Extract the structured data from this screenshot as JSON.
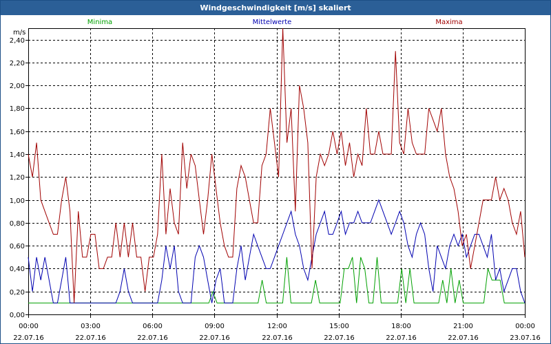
{
  "window": {
    "title": "Windgeschwindigkeit [m/s] skaliert"
  },
  "chart_data": {
    "type": "line",
    "title": "Windgeschwindigkeit [m/s] skaliert",
    "ylabel": "m/s",
    "ylim": [
      0,
      2.5
    ],
    "xlim": [
      0,
      24
    ],
    "grid": true,
    "legend_position": "top",
    "y_ticks": [
      "0,00",
      "0,20",
      "0,40",
      "0,60",
      "0,80",
      "1,00",
      "1,20",
      "1,40",
      "1,60",
      "1,80",
      "2,00",
      "2,20",
      "2,40"
    ],
    "x_ticks": [
      {
        "time": "00:00",
        "date": "22.07.16"
      },
      {
        "time": "03:00",
        "date": "22.07.16"
      },
      {
        "time": "06:00",
        "date": "22.07.16"
      },
      {
        "time": "09:00",
        "date": "22.07.16"
      },
      {
        "time": "12:00",
        "date": "22.07.16"
      },
      {
        "time": "15:00",
        "date": "22.07.16"
      },
      {
        "time": "18:00",
        "date": "22.07.16"
      },
      {
        "time": "21:00",
        "date": "22.07.16"
      },
      {
        "time": "00:00",
        "date": "23.07.16"
      }
    ],
    "series": [
      {
        "name": "Minima",
        "color": "#00a000",
        "values": [
          0.1,
          0.1,
          0.1,
          0.1,
          0.1,
          0.1,
          0.1,
          0.1,
          0.1,
          0.1,
          0.1,
          0.1,
          0.1,
          0.1,
          0.1,
          0.1,
          0.1,
          0.1,
          0.1,
          0.1,
          0.1,
          0.1,
          0.1,
          0.1,
          0.1,
          0.1,
          0.1,
          0.1,
          0.1,
          0.1,
          0.1,
          0.1,
          0.1,
          0.1,
          0.1,
          0.1,
          0.1,
          0.1,
          0.1,
          0.1,
          0.1,
          0.1,
          0.1,
          0.1,
          0.1,
          0.2,
          0.1,
          0.1,
          0.1,
          0.1,
          0.1,
          0.1,
          0.1,
          0.1,
          0.1,
          0.1,
          0.1,
          0.3,
          0.1,
          0.1,
          0.1,
          0.1,
          0.1,
          0.5,
          0.1,
          0.1,
          0.1,
          0.1,
          0.1,
          0.1,
          0.3,
          0.1,
          0.1,
          0.1,
          0.1,
          0.1,
          0.1,
          0.4,
          0.4,
          0.5,
          0.1,
          0.5,
          0.4,
          0.1,
          0.1,
          0.5,
          0.1,
          0.1,
          0.1,
          0.1,
          0.1,
          0.4,
          0.1,
          0.4,
          0.1,
          0.1,
          0.1,
          0.1,
          0.1,
          0.1,
          0.1,
          0.3,
          0.1,
          0.4,
          0.1,
          0.3,
          0.1,
          0.1,
          0.1,
          0.1,
          0.1,
          0.1,
          0.4,
          0.3,
          0.3,
          0.3,
          0.1,
          0.1,
          0.1,
          0.1,
          0.1,
          0.1
        ]
      },
      {
        "name": "Mittelwerte",
        "color": "#0000b0",
        "values": [
          0.5,
          0.2,
          0.5,
          0.3,
          0.5,
          0.3,
          0.1,
          0.1,
          0.3,
          0.5,
          0.1,
          0.1,
          0.1,
          0.1,
          0.1,
          0.1,
          0.1,
          0.1,
          0.1,
          0.1,
          0.1,
          0.1,
          0.2,
          0.4,
          0.2,
          0.1,
          0.1,
          0.1,
          0.1,
          0.1,
          0.1,
          0.1,
          0.3,
          0.6,
          0.4,
          0.6,
          0.2,
          0.1,
          0.1,
          0.1,
          0.5,
          0.6,
          0.5,
          0.3,
          0.1,
          0.3,
          0.4,
          0.1,
          0.1,
          0.1,
          0.4,
          0.6,
          0.3,
          0.5,
          0.7,
          0.6,
          0.5,
          0.4,
          0.4,
          0.5,
          0.6,
          0.7,
          0.8,
          0.9,
          0.7,
          0.6,
          0.4,
          0.3,
          0.5,
          0.7,
          0.8,
          0.9,
          0.7,
          0.7,
          0.8,
          0.9,
          0.7,
          0.8,
          0.8,
          0.9,
          0.8,
          0.8,
          0.8,
          0.9,
          1.0,
          0.9,
          0.8,
          0.7,
          0.8,
          0.9,
          0.8,
          0.6,
          0.5,
          0.7,
          0.8,
          0.7,
          0.4,
          0.2,
          0.6,
          0.5,
          0.4,
          0.6,
          0.7,
          0.6,
          0.7,
          0.5,
          0.6,
          0.7,
          0.7,
          0.6,
          0.5,
          0.7,
          0.3,
          0.4,
          0.2,
          0.3,
          0.4,
          0.4,
          0.2,
          0.1
        ]
      },
      {
        "name": "Maxima",
        "color": "#a00000",
        "values": [
          1.4,
          1.2,
          1.5,
          1.0,
          0.9,
          0.8,
          0.7,
          0.7,
          1.0,
          1.2,
          0.9,
          0.1,
          0.9,
          0.5,
          0.5,
          0.7,
          0.7,
          0.4,
          0.4,
          0.5,
          0.5,
          0.8,
          0.5,
          0.8,
          0.5,
          0.8,
          0.5,
          0.5,
          0.2,
          0.5,
          0.5,
          0.7,
          1.4,
          0.7,
          1.1,
          0.8,
          0.7,
          1.5,
          1.1,
          1.4,
          1.3,
          1.0,
          0.7,
          1.0,
          1.4,
          1.1,
          0.8,
          0.6,
          0.5,
          0.5,
          1.1,
          1.3,
          1.2,
          1.0,
          0.8,
          0.8,
          1.3,
          1.4,
          1.8,
          1.5,
          1.2,
          2.5,
          1.5,
          1.8,
          0.9,
          2.0,
          1.8,
          1.5,
          0.4,
          1.2,
          1.4,
          1.3,
          1.4,
          1.6,
          1.4,
          1.6,
          1.3,
          1.5,
          1.2,
          1.4,
          1.3,
          1.8,
          1.4,
          1.4,
          1.6,
          1.4,
          1.4,
          1.4,
          2.3,
          1.5,
          1.4,
          1.8,
          1.5,
          1.4,
          1.4,
          1.4,
          1.8,
          1.7,
          1.6,
          1.8,
          1.4,
          1.2,
          1.1,
          0.9,
          0.6,
          0.7,
          0.4,
          0.6,
          0.8,
          1.0,
          1.0,
          1.0,
          1.2,
          1.0,
          1.1,
          1.0,
          0.8,
          0.7,
          0.9,
          0.5
        ]
      }
    ]
  }
}
